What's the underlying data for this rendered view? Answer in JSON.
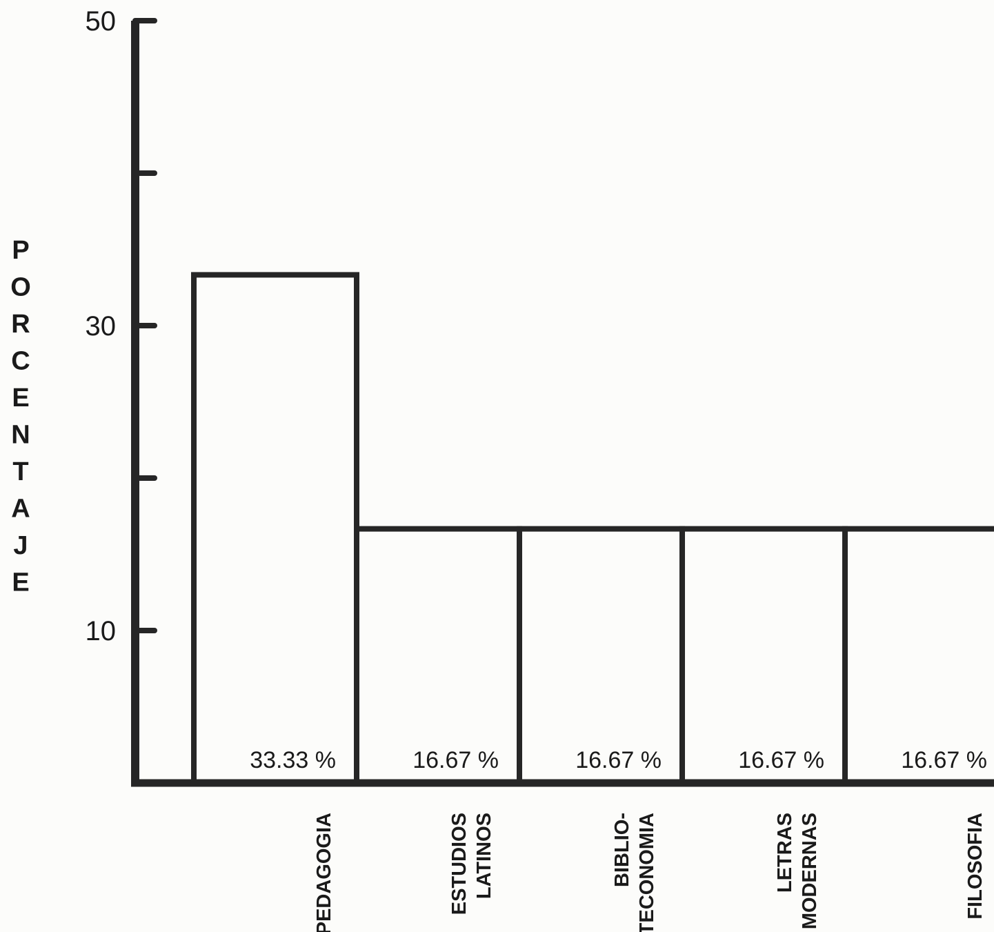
{
  "chart_data": {
    "type": "bar",
    "ylabel": "PORCENTAJE",
    "ylim": [
      0,
      50
    ],
    "yticks": [
      10,
      20,
      30,
      40,
      50
    ],
    "ytick_labels": [
      "10",
      "",
      "30",
      "",
      "50"
    ],
    "categories": [
      [
        "PEDAGOGIA"
      ],
      [
        "ESTUDIOS",
        "LATINOS"
      ],
      [
        "BIBLIO-",
        "TECONOMIA"
      ],
      [
        "LETRAS",
        "MODERNAS"
      ],
      [
        "FILOSOFIA"
      ]
    ],
    "values": [
      33.33,
      16.67,
      16.67,
      16.67,
      16.67
    ],
    "value_labels": [
      "33.33 %",
      "16.67 %",
      "16.67 %",
      "16.67 %",
      "16.67 %"
    ]
  }
}
